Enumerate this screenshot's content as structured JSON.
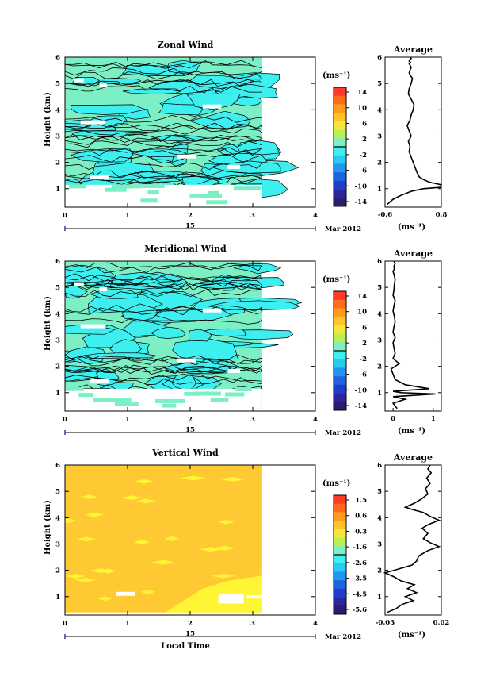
{
  "chart_data": [
    {
      "type": "heatmap",
      "title": "Zonal Wind",
      "ylabel": "Height (km)",
      "xlabel": "",
      "xlim": [
        0,
        4
      ],
      "ylim": [
        0.3,
        6
      ],
      "xticks": [
        "0",
        "1",
        "2",
        "3",
        "4"
      ],
      "yticks": [
        "1",
        "2",
        "3",
        "4",
        "5",
        "6"
      ],
      "date_label": "15",
      "month_label": "Mar 2012",
      "data_end_hour": 3.15,
      "fill": "#7CF0C4",
      "secondary_fill": "#3EEFF0",
      "contours": true,
      "colorbar": {
        "unit": "(ms⁻¹)",
        "ticks": [
          "14",
          "10",
          "6",
          "2",
          "-2",
          "-6",
          "-10",
          "-14"
        ],
        "range": [
          -16,
          16
        ]
      },
      "profile": {
        "title": "Average",
        "xlabel": "(ms⁻¹)",
        "xlim": [
          -0.6,
          0.8
        ],
        "xticks": [
          "-0.6",
          "0.8"
        ],
        "ylim": [
          0.3,
          6
        ],
        "yticks": [
          "1",
          "2",
          "3",
          "4",
          "5",
          "6"
        ],
        "x": [
          -0.55,
          -0.4,
          -0.2,
          0.05,
          0.35,
          0.78,
          0.8,
          0.5,
          0.35,
          0.25,
          0.2,
          0.15,
          0.1,
          0.05,
          0.0,
          0.02,
          -0.02,
          0.05,
          0.0,
          -0.05,
          0.02,
          0.05,
          0.1,
          0.12,
          0.05,
          -0.02,
          0.0,
          0.05,
          0.08,
          0.03,
          0.0,
          0.02,
          0.05,
          0.02,
          0.0,
          0.03,
          0.0,
          0.02,
          0.05,
          0.02
        ],
        "y": [
          0.4,
          0.6,
          0.75,
          0.9,
          1.0,
          1.05,
          1.15,
          1.25,
          1.35,
          1.45,
          1.6,
          1.8,
          2.0,
          2.2,
          2.4,
          2.6,
          2.8,
          3.0,
          3.2,
          3.4,
          3.6,
          3.8,
          4.0,
          4.2,
          4.4,
          4.6,
          4.8,
          5.0,
          5.2,
          5.3,
          5.4,
          5.5,
          5.6,
          5.7,
          5.75,
          5.8,
          5.85,
          5.9,
          5.95,
          6.0
        ]
      }
    },
    {
      "type": "heatmap",
      "title": "Meridional Wind",
      "ylabel": "Height (km)",
      "xlabel": "",
      "xlim": [
        0,
        4
      ],
      "ylim": [
        0.3,
        6
      ],
      "xticks": [
        "0",
        "1",
        "2",
        "3",
        "4"
      ],
      "yticks": [
        "1",
        "2",
        "3",
        "4",
        "5",
        "6"
      ],
      "date_label": "15",
      "month_label": "Mar 2012",
      "data_end_hour": 3.15,
      "fill": "#7CF0C4",
      "secondary_fill": "#3EEFF0",
      "contours": true,
      "colorbar": {
        "unit": "(ms⁻¹)",
        "ticks": [
          "14",
          "10",
          "6",
          "2",
          "-2",
          "-6",
          "-10",
          "-14"
        ],
        "range": [
          -16,
          16
        ]
      },
      "profile": {
        "title": "Average",
        "xlabel": "(ms⁻¹)",
        "xlim": [
          -0.2,
          1.2
        ],
        "xticks": [
          "0",
          "1"
        ],
        "ylim": [
          0.3,
          6
        ],
        "yticks": [
          "1",
          "2",
          "3",
          "4",
          "5",
          "6"
        ],
        "x": [
          0.1,
          0.0,
          0.3,
          0.0,
          1.05,
          0.2,
          0.0,
          0.9,
          0.3,
          0.05,
          0.0,
          -0.05,
          0.15,
          0.0,
          0.05,
          0.02,
          0.0,
          0.05,
          0.0,
          0.02,
          0.05,
          0.03,
          0.0,
          0.02,
          0.05,
          0.0,
          0.02,
          0.03,
          0.05,
          0.02,
          0.0,
          0.03,
          0.02,
          0.05,
          0.02
        ],
        "y": [
          0.4,
          0.6,
          0.75,
          0.85,
          0.95,
          1.0,
          1.05,
          1.15,
          1.3,
          1.5,
          1.7,
          1.9,
          2.1,
          2.3,
          2.5,
          2.7,
          2.9,
          3.1,
          3.3,
          3.5,
          3.7,
          3.9,
          4.1,
          4.3,
          4.5,
          4.7,
          4.9,
          5.1,
          5.3,
          5.5,
          5.6,
          5.7,
          5.8,
          5.9,
          6.0
        ]
      }
    },
    {
      "type": "heatmap",
      "title": "Vertical Wind",
      "ylabel": "Height (km)",
      "xlabel": "Local Time",
      "xlim": [
        0,
        4
      ],
      "ylim": [
        0.3,
        6
      ],
      "xticks": [
        "0",
        "1",
        "2",
        "3",
        "4"
      ],
      "yticks": [
        "1",
        "2",
        "3",
        "4",
        "5",
        "6"
      ],
      "date_label": "15",
      "month_label": "Mar 2012",
      "data_end_hour": 3.15,
      "fill": "#FFC933",
      "secondary_fill": "#FFF533",
      "contours": false,
      "colorbar": {
        "unit": "(ms⁻¹)",
        "ticks": [
          "1.5",
          "0.6",
          "-0.3",
          "-1.6",
          "-2.6",
          "-3.5",
          "-4.5",
          "-5.6"
        ],
        "range": [
          -6,
          2
        ]
      },
      "profile": {
        "title": "Average",
        "xlabel": "(ms⁻¹)",
        "xlim": [
          -0.03,
          0.02
        ],
        "xticks": [
          "-0.03",
          "0.02"
        ],
        "ylim": [
          0.3,
          6
        ],
        "yticks": [
          "1",
          "2",
          "3",
          "4",
          "5",
          "6"
        ],
        "x": [
          -0.028,
          -0.02,
          -0.015,
          -0.005,
          -0.012,
          -0.002,
          -0.01,
          -0.004,
          -0.016,
          -0.022,
          -0.03,
          -0.018,
          -0.006,
          -0.002,
          0.0,
          0.008,
          0.018,
          0.01,
          0.004,
          0.008,
          0.003,
          0.009,
          0.018,
          0.01,
          0.004,
          -0.005,
          -0.012,
          -0.004,
          0.002,
          0.008,
          0.006,
          0.01,
          0.007,
          0.011,
          0.008,
          0.01
        ],
        "y": [
          0.4,
          0.55,
          0.7,
          0.85,
          1.0,
          1.15,
          1.3,
          1.45,
          1.6,
          1.75,
          1.9,
          2.05,
          2.2,
          2.35,
          2.55,
          2.75,
          2.9,
          3.05,
          3.2,
          3.4,
          3.6,
          3.75,
          3.9,
          4.05,
          4.2,
          4.3,
          4.4,
          4.55,
          4.7,
          4.9,
          5.1,
          5.3,
          5.5,
          5.7,
          5.85,
          6.0
        ]
      }
    }
  ]
}
